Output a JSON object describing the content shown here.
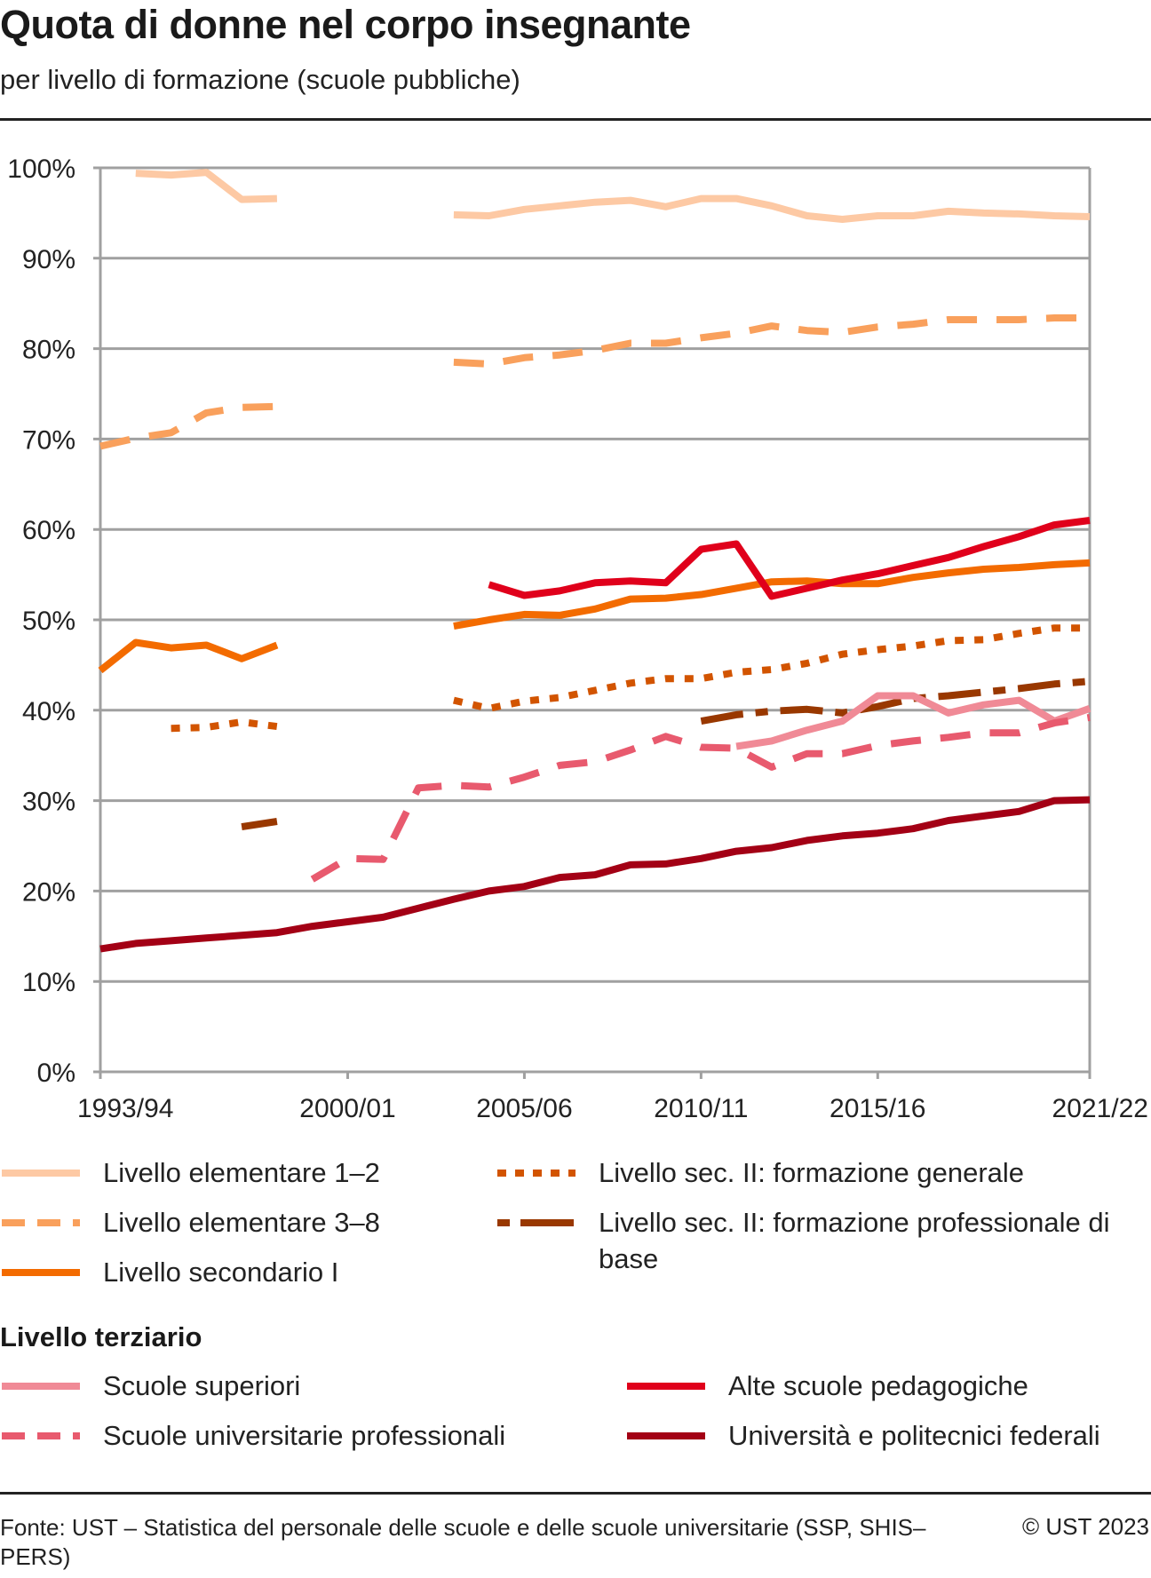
{
  "header": {
    "title": "Quota di donne nel corpo insegnante",
    "subtitle": "per livello di formazione (scuole pubbliche)"
  },
  "footer": {
    "source": "Fonte: UST – Statistica del personale delle scuole e delle scuole universitarie (SSP, SHIS–PERS)",
    "copyright": "© UST 2023"
  },
  "legend": {
    "tertiary_heading": "Livello terziario"
  },
  "chart_data": {
    "type": "line",
    "title": "Quota di donne nel corpo insegnante",
    "subtitle": "per livello di formazione (scuole pubbliche)",
    "xlabel": "",
    "ylabel": "",
    "ylim": [
      0,
      100
    ],
    "yticks": [
      0,
      10,
      20,
      30,
      40,
      50,
      60,
      70,
      80,
      90,
      100
    ],
    "ytick_labels": [
      "0%",
      "10%",
      "20%",
      "30%",
      "40%",
      "50%",
      "60%",
      "70%",
      "80%",
      "90%",
      "100%"
    ],
    "x": [
      "1993/94",
      "1994/95",
      "1995/96",
      "1996/97",
      "1997/98",
      "1998/99",
      "1999/00",
      "2000/01",
      "2001/02",
      "2002/03",
      "2003/04",
      "2004/05",
      "2005/06",
      "2006/07",
      "2007/08",
      "2008/09",
      "2009/10",
      "2010/11",
      "2011/12",
      "2012/13",
      "2013/14",
      "2014/15",
      "2015/16",
      "2016/17",
      "2017/18",
      "2018/19",
      "2019/20",
      "2020/21",
      "2021/22"
    ],
    "xtick_labels": [
      "1993/94",
      "2000/01",
      "2005/06",
      "2010/11",
      "2015/16",
      "2021/22"
    ],
    "grid": true,
    "legend_position": "bottom",
    "series": [
      {
        "name": "Livello elementare 1–2",
        "color": "#fdc9a4",
        "style": "solid",
        "group": "main",
        "values": [
          null,
          99.4,
          99.2,
          99.5,
          96.5,
          96.6,
          null,
          null,
          null,
          null,
          94.8,
          94.7,
          95.4,
          95.8,
          96.2,
          96.4,
          95.7,
          96.6,
          96.6,
          95.8,
          94.7,
          94.3,
          94.7,
          94.7,
          95.2,
          95.0,
          94.9,
          94.7,
          94.6
        ]
      },
      {
        "name": "Livello elementare 3–8",
        "color": "#f9a05c",
        "style": "dashed",
        "group": "main",
        "values": [
          69.2,
          70.1,
          70.7,
          72.9,
          73.5,
          73.6,
          null,
          null,
          null,
          null,
          78.5,
          78.3,
          79.0,
          79.3,
          79.8,
          80.6,
          80.6,
          81.2,
          81.7,
          82.5,
          82.0,
          81.8,
          82.4,
          82.7,
          83.2,
          83.2,
          83.2,
          83.4,
          83.4
        ]
      },
      {
        "name": "Livello secondario I",
        "color": "#f36b00",
        "style": "solid",
        "group": "main",
        "values": [
          44.4,
          47.5,
          46.9,
          47.2,
          45.7,
          47.2,
          null,
          null,
          null,
          null,
          49.3,
          50.0,
          50.6,
          50.5,
          51.2,
          52.3,
          52.4,
          52.8,
          53.5,
          54.2,
          54.3,
          54.0,
          54.0,
          54.7,
          55.2,
          55.6,
          55.8,
          56.1,
          56.3
        ]
      },
      {
        "name": "Livello sec. II: formazione generale",
        "color": "#d25400",
        "style": "dotted",
        "group": "main",
        "values": [
          null,
          null,
          38.0,
          38.1,
          38.7,
          38.2,
          null,
          null,
          null,
          null,
          41.1,
          40.2,
          41.0,
          41.4,
          42.2,
          43.0,
          43.5,
          43.5,
          44.2,
          44.5,
          45.2,
          46.2,
          46.7,
          47.1,
          47.7,
          47.8,
          48.5,
          49.1,
          49.1
        ]
      },
      {
        "name": "Livello sec. II: formazione professionale di base",
        "color": "#993800",
        "style": "dashdot",
        "group": "main",
        "values": [
          null,
          null,
          null,
          null,
          27.1,
          27.7,
          null,
          null,
          null,
          null,
          null,
          null,
          null,
          null,
          null,
          null,
          null,
          38.8,
          39.5,
          39.9,
          40.1,
          39.7,
          40.4,
          41.3,
          41.6,
          42.0,
          42.4,
          42.9,
          43.2
        ]
      },
      {
        "name": "Scuole superiori",
        "color": "#f08a96",
        "style": "solid",
        "group": "tertiary",
        "values": [
          null,
          null,
          null,
          null,
          null,
          null,
          null,
          null,
          null,
          null,
          null,
          null,
          null,
          null,
          null,
          null,
          null,
          null,
          36.0,
          36.6,
          37.8,
          38.8,
          41.6,
          41.6,
          39.7,
          40.6,
          41.1,
          38.8,
          40.2
        ]
      },
      {
        "name": "Scuole universitarie professionali",
        "color": "#e85a6e",
        "style": "dashed",
        "group": "tertiary",
        "values": [
          null,
          null,
          null,
          null,
          null,
          null,
          21.3,
          23.6,
          23.5,
          31.4,
          31.7,
          31.5,
          32.6,
          33.9,
          34.3,
          35.6,
          37.1,
          35.9,
          35.8,
          33.7,
          35.2,
          35.2,
          36.1,
          36.6,
          37.0,
          37.5,
          37.5,
          38.6,
          39.2
        ]
      },
      {
        "name": "Alte scuole  pedagogiche",
        "color": "#e0001b",
        "style": "solid",
        "group": "tertiary",
        "values": [
          null,
          null,
          null,
          null,
          null,
          null,
          null,
          null,
          null,
          null,
          null,
          53.9,
          52.7,
          53.2,
          54.1,
          54.3,
          54.1,
          57.8,
          58.4,
          52.6,
          53.5,
          54.4,
          55.1,
          56.0,
          56.9,
          58.1,
          59.2,
          60.5,
          61.0
        ]
      },
      {
        "name": "Università e politecnici federali",
        "color": "#a30015",
        "style": "solid",
        "group": "tertiary",
        "values": [
          13.6,
          14.2,
          14.5,
          14.8,
          15.1,
          15.4,
          16.1,
          16.6,
          17.1,
          18.1,
          19.1,
          20.0,
          20.5,
          21.5,
          21.8,
          22.9,
          23.0,
          23.6,
          24.4,
          24.8,
          25.6,
          26.1,
          26.4,
          26.9,
          27.8,
          28.3,
          28.8,
          30.0,
          30.1
        ]
      }
    ]
  }
}
